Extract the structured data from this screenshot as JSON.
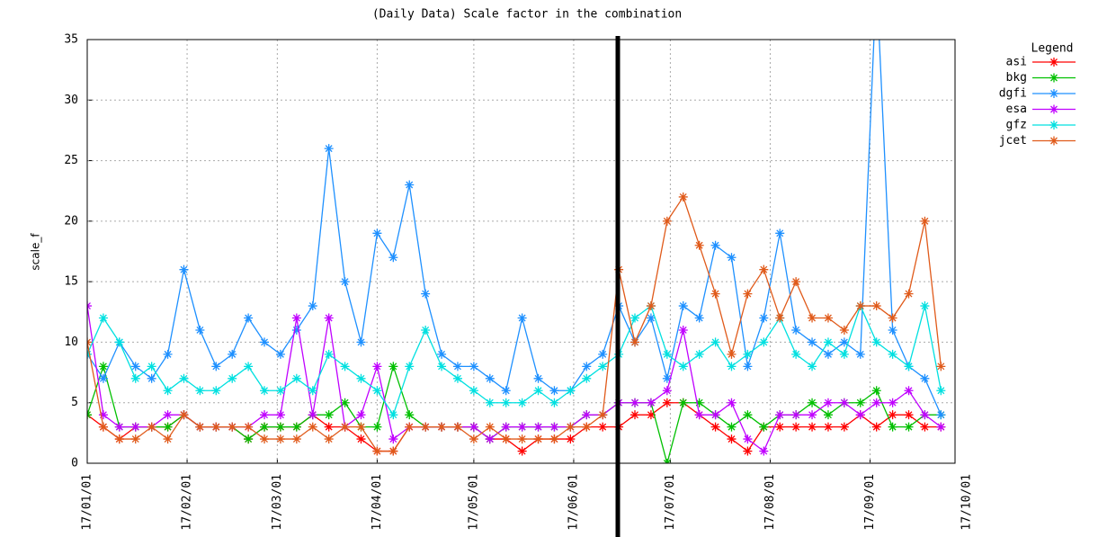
{
  "chart_data": {
    "type": "line",
    "title": "(Daily Data) Scale factor in the combination",
    "y_label": "scale_f",
    "legend_title": "Legend",
    "legend": "top-right outside",
    "grid": true,
    "x": [
      "17/01/01",
      "17/01/06",
      "17/01/11",
      "17/01/16",
      "17/01/21",
      "17/01/26",
      "17/01/31",
      "17/02/05",
      "17/02/10",
      "17/02/15",
      "17/02/20",
      "17/02/25",
      "17/03/02",
      "17/03/07",
      "17/03/12",
      "17/03/17",
      "17/03/22",
      "17/03/27",
      "17/04/01",
      "17/04/06",
      "17/04/11",
      "17/04/16",
      "17/04/21",
      "17/04/26",
      "17/05/01",
      "17/05/06",
      "17/05/11",
      "17/05/16",
      "17/05/21",
      "17/05/26",
      "17/05/31",
      "17/06/05",
      "17/06/10",
      "17/06/15",
      "17/06/20",
      "17/06/25",
      "17/06/30",
      "17/07/05",
      "17/07/10",
      "17/07/15",
      "17/07/20",
      "17/07/25",
      "17/07/30",
      "17/08/04",
      "17/08/09",
      "17/08/14",
      "17/08/19",
      "17/08/24",
      "17/08/29",
      "17/09/03",
      "17/09/08",
      "17/09/13",
      "17/09/18",
      "17/09/23"
    ],
    "xlim": [
      "17/01/01",
      "17/10/01"
    ],
    "xticks": [
      "17/01/01",
      "17/02/01",
      "17/03/01",
      "17/04/01",
      "17/05/01",
      "17/06/01",
      "17/07/01",
      "17/08/01",
      "17/09/01",
      "17/10/01"
    ],
    "ylim": [
      0,
      35
    ],
    "yticks": [
      0,
      5,
      10,
      15,
      20,
      25,
      30,
      35
    ],
    "series": [
      {
        "name": "asi",
        "color": "#ff0000",
        "values": [
          4,
          3,
          2,
          3,
          3,
          3,
          4,
          3,
          3,
          3,
          2,
          3,
          3,
          3,
          4,
          3,
          3,
          2,
          1,
          1,
          3,
          3,
          3,
          3,
          3,
          2,
          2,
          1,
          2,
          2,
          2,
          3,
          3,
          3,
          4,
          4,
          5,
          5,
          4,
          3,
          2,
          1,
          3,
          3,
          3,
          3,
          3,
          3,
          4,
          3,
          4,
          4,
          3,
          3
        ]
      },
      {
        "name": "bkg",
        "color": "#00c000",
        "values": [
          4,
          8,
          3,
          3,
          3,
          3,
          4,
          3,
          3,
          3,
          2,
          3,
          3,
          3,
          4,
          4,
          5,
          3,
          3,
          8,
          4,
          3,
          3,
          3,
          3,
          2,
          3,
          3,
          3,
          3,
          3,
          4,
          4,
          5,
          5,
          5,
          0,
          5,
          5,
          4,
          3,
          4,
          3,
          4,
          4,
          5,
          4,
          5,
          5,
          6,
          3,
          3,
          4,
          4
        ]
      },
      {
        "name": "dgfi",
        "color": "#1e90ff",
        "values": [
          9,
          7,
          10,
          8,
          7,
          9,
          16,
          11,
          8,
          9,
          12,
          10,
          9,
          11,
          13,
          26,
          15,
          10,
          19,
          17,
          23,
          14,
          9,
          8,
          8,
          7,
          6,
          12,
          7,
          6,
          6,
          8,
          9,
          13,
          10,
          12,
          7,
          13,
          12,
          18,
          17,
          8,
          12,
          19,
          11,
          10,
          9,
          10,
          9,
          40,
          11,
          8,
          7,
          4
        ]
      },
      {
        "name": "esa",
        "color": "#c000ff",
        "values": [
          13,
          4,
          3,
          3,
          3,
          4,
          4,
          3,
          3,
          3,
          3,
          4,
          4,
          12,
          4,
          12,
          3,
          4,
          8,
          2,
          3,
          3,
          3,
          3,
          3,
          2,
          3,
          3,
          3,
          3,
          3,
          4,
          4,
          5,
          5,
          5,
          6,
          11,
          4,
          4,
          5,
          2,
          1,
          4,
          4,
          4,
          5,
          5,
          4,
          5,
          5,
          6,
          4,
          3
        ]
      },
      {
        "name": "gfz",
        "color": "#00e0e0",
        "values": [
          9,
          12,
          10,
          7,
          8,
          6,
          7,
          6,
          6,
          7,
          8,
          6,
          6,
          7,
          6,
          9,
          8,
          7,
          6,
          4,
          8,
          11,
          8,
          7,
          6,
          5,
          5,
          5,
          6,
          5,
          6,
          7,
          8,
          9,
          12,
          13,
          9,
          8,
          9,
          10,
          8,
          9,
          10,
          12,
          9,
          8,
          10,
          9,
          13,
          10,
          9,
          8,
          13,
          6
        ]
      },
      {
        "name": "jcet",
        "color": "#e05a1a",
        "values": [
          10,
          3,
          2,
          2,
          3,
          2,
          4,
          3,
          3,
          3,
          3,
          2,
          2,
          2,
          3,
          2,
          3,
          3,
          1,
          1,
          3,
          3,
          3,
          3,
          2,
          3,
          2,
          2,
          2,
          2,
          3,
          3,
          4,
          16,
          10,
          13,
          20,
          22,
          18,
          14,
          9,
          14,
          16,
          12,
          15,
          12,
          12,
          11,
          13,
          13,
          12,
          14,
          20,
          8
        ]
      }
    ]
  }
}
